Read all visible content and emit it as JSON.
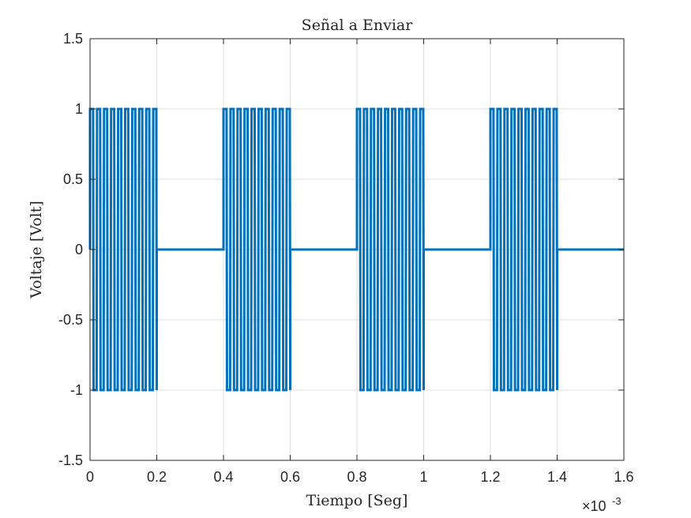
{
  "chart_data": {
    "type": "line",
    "title": "Señal a Enviar",
    "xlabel": "Tiempo [Seg]",
    "ylabel": "Voltaje [Volt]",
    "xlim": [
      0,
      0.0016
    ],
    "ylim": [
      -1.5,
      1.5
    ],
    "x_exponent": {
      "base": "×10",
      "power": "-3"
    },
    "grid": true,
    "x_ticks": [
      0,
      0.0002,
      0.0004,
      0.0006,
      0.0008,
      0.001,
      0.0012,
      0.0014,
      0.0016
    ],
    "x_tick_labels": [
      "0",
      "0.2",
      "0.4",
      "0.6",
      "0.8",
      "1",
      "1.2",
      "1.4",
      "1.6"
    ],
    "y_ticks": [
      1.5,
      1,
      0.5,
      0,
      -0.5,
      -1,
      -1.5
    ],
    "y_tick_labels": [
      "1.5",
      "1",
      "0.5",
      "0",
      "-0.5",
      "-1",
      "-1.5"
    ],
    "series": [
      {
        "color": "#0072bd",
        "signal": "square wave bursts between -1 and 1, otherwise 0",
        "bursts": [
          {
            "start": 0,
            "end": 0.0002
          },
          {
            "start": 0.0004,
            "end": 0.0006
          },
          {
            "start": 0.0008,
            "end": 0.001
          },
          {
            "start": 0.0012,
            "end": 0.0014
          }
        ],
        "cycles_per_burst": 9.5,
        "amplitude": 1,
        "idle_value": 0
      }
    ]
  }
}
